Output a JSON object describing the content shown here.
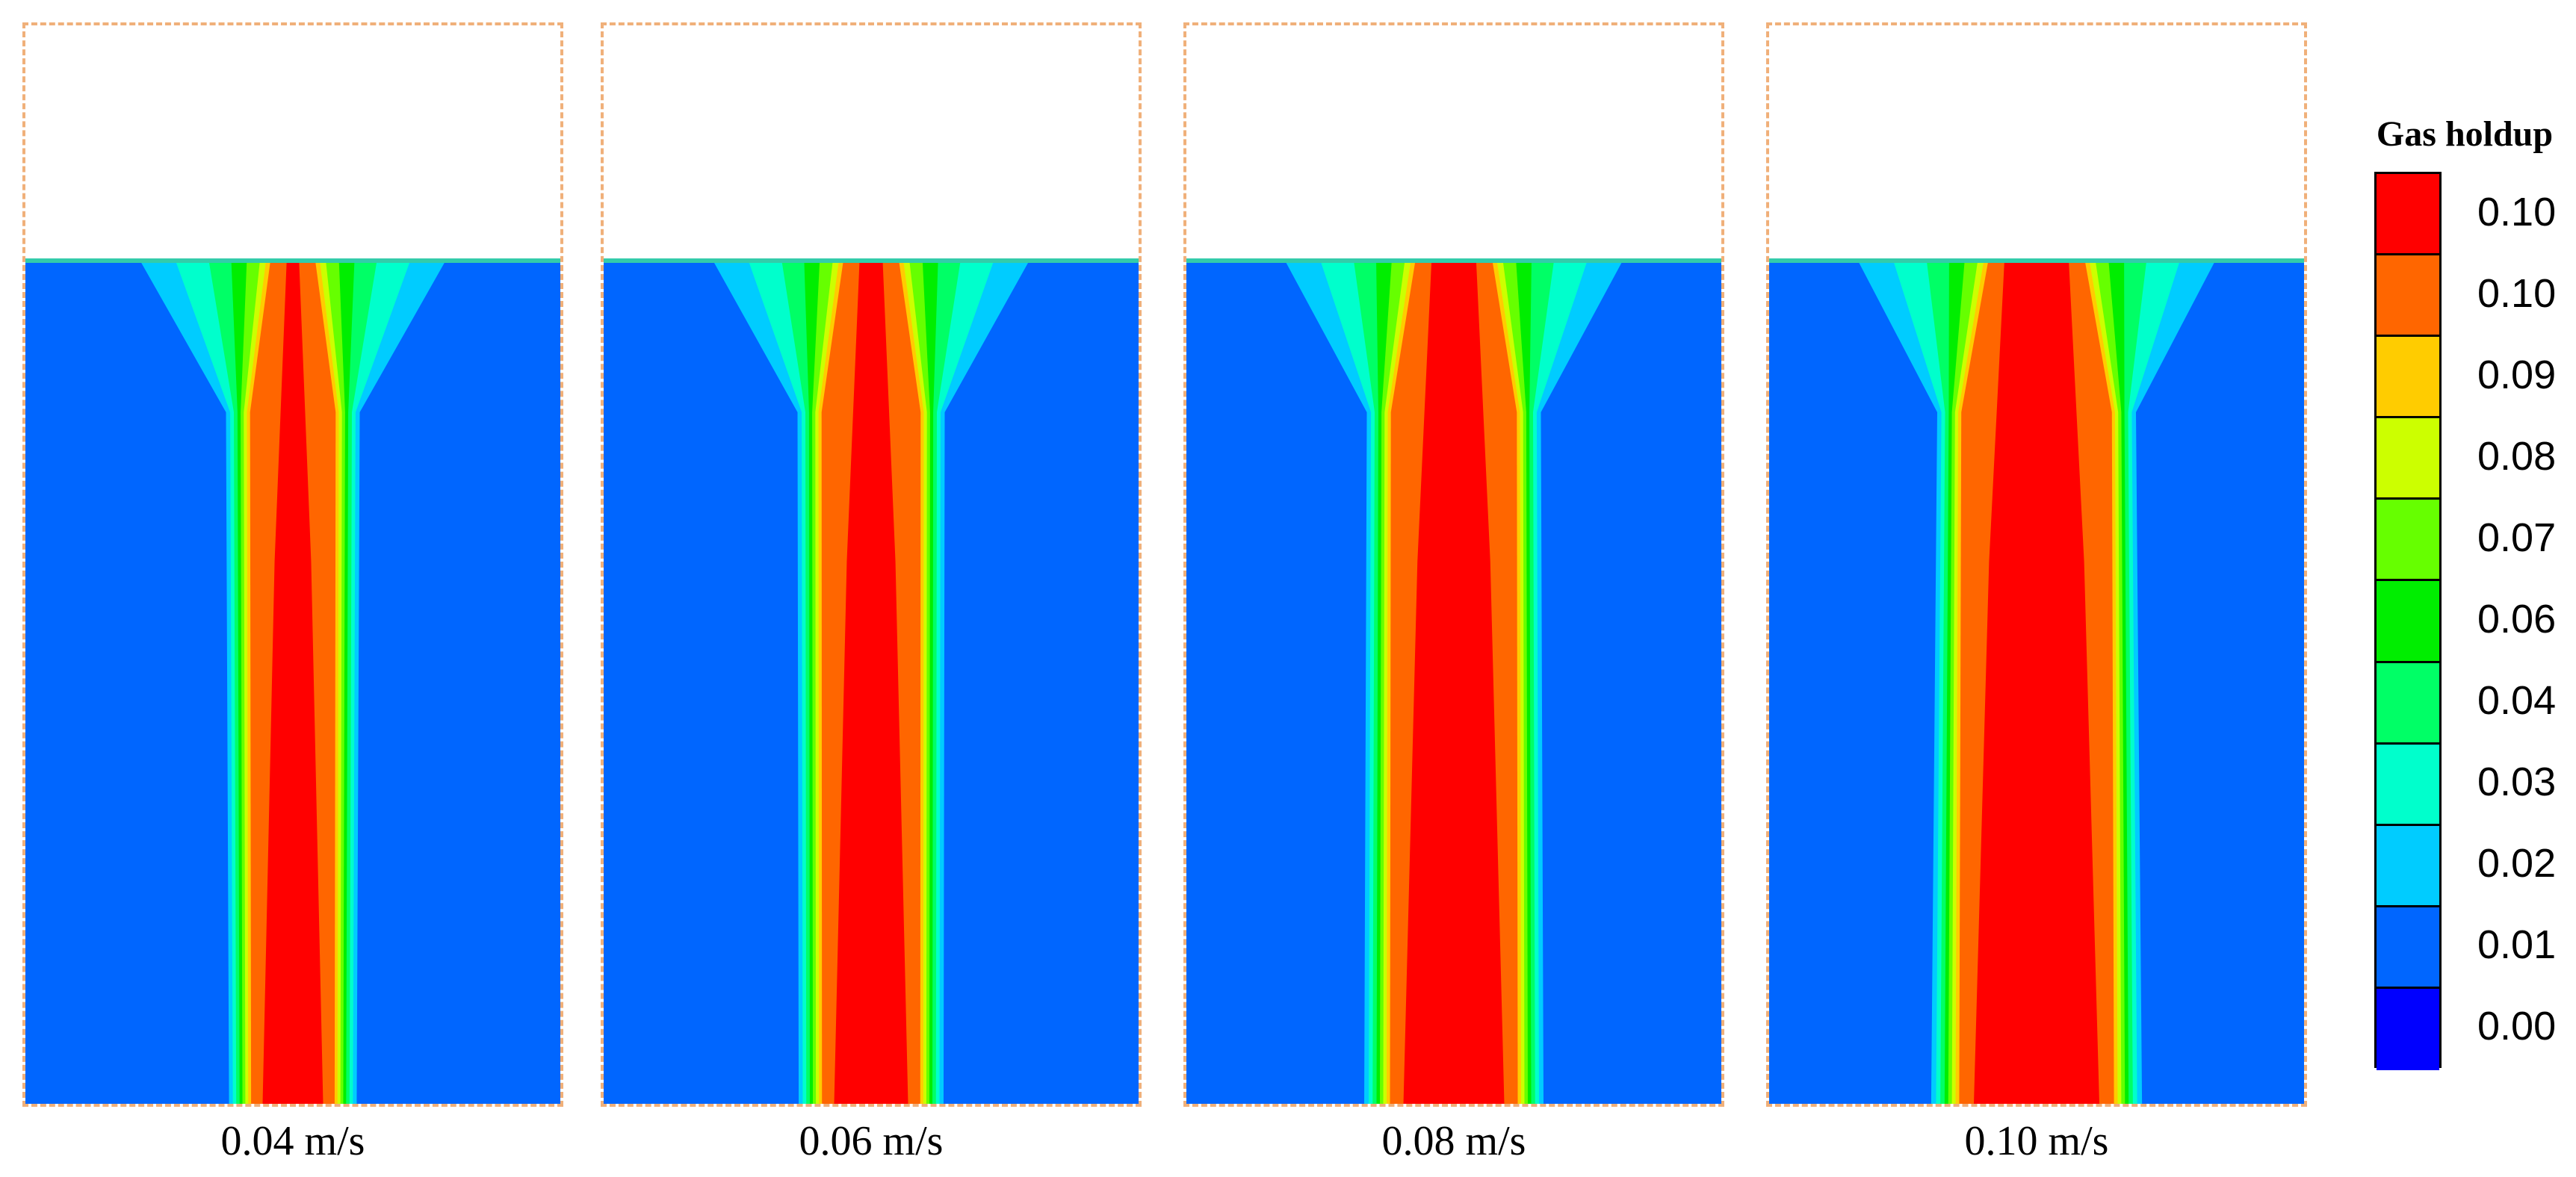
{
  "figure": {
    "panels": [
      {
        "caption": "0.04 m/s",
        "velocity": 0.04,
        "core_width": 0.07
      },
      {
        "caption": "0.06 m/s",
        "velocity": 0.06,
        "core_width": 0.13
      },
      {
        "caption": "0.08 m/s",
        "velocity": 0.08,
        "core_width": 0.25
      },
      {
        "caption": "0.10 m/s",
        "velocity": 0.1,
        "core_width": 0.36
      }
    ]
  },
  "colorbar": {
    "title": "Gas holdup",
    "levels": [
      {
        "label": "0.10",
        "color": "#ff0000"
      },
      {
        "label": "0.10",
        "color": "#ff6600"
      },
      {
        "label": "0.09",
        "color": "#ffcc00"
      },
      {
        "label": "0.08",
        "color": "#ccff00"
      },
      {
        "label": "0.07",
        "color": "#66ff00"
      },
      {
        "label": "0.06",
        "color": "#00ee00"
      },
      {
        "label": "0.04",
        "color": "#00ff66"
      },
      {
        "label": "0.03",
        "color": "#00ffcc"
      },
      {
        "label": "0.02",
        "color": "#00ccff"
      },
      {
        "label": "0.01",
        "color": "#0066ff"
      },
      {
        "label": "0.00",
        "color": "#0000ff"
      }
    ]
  }
}
